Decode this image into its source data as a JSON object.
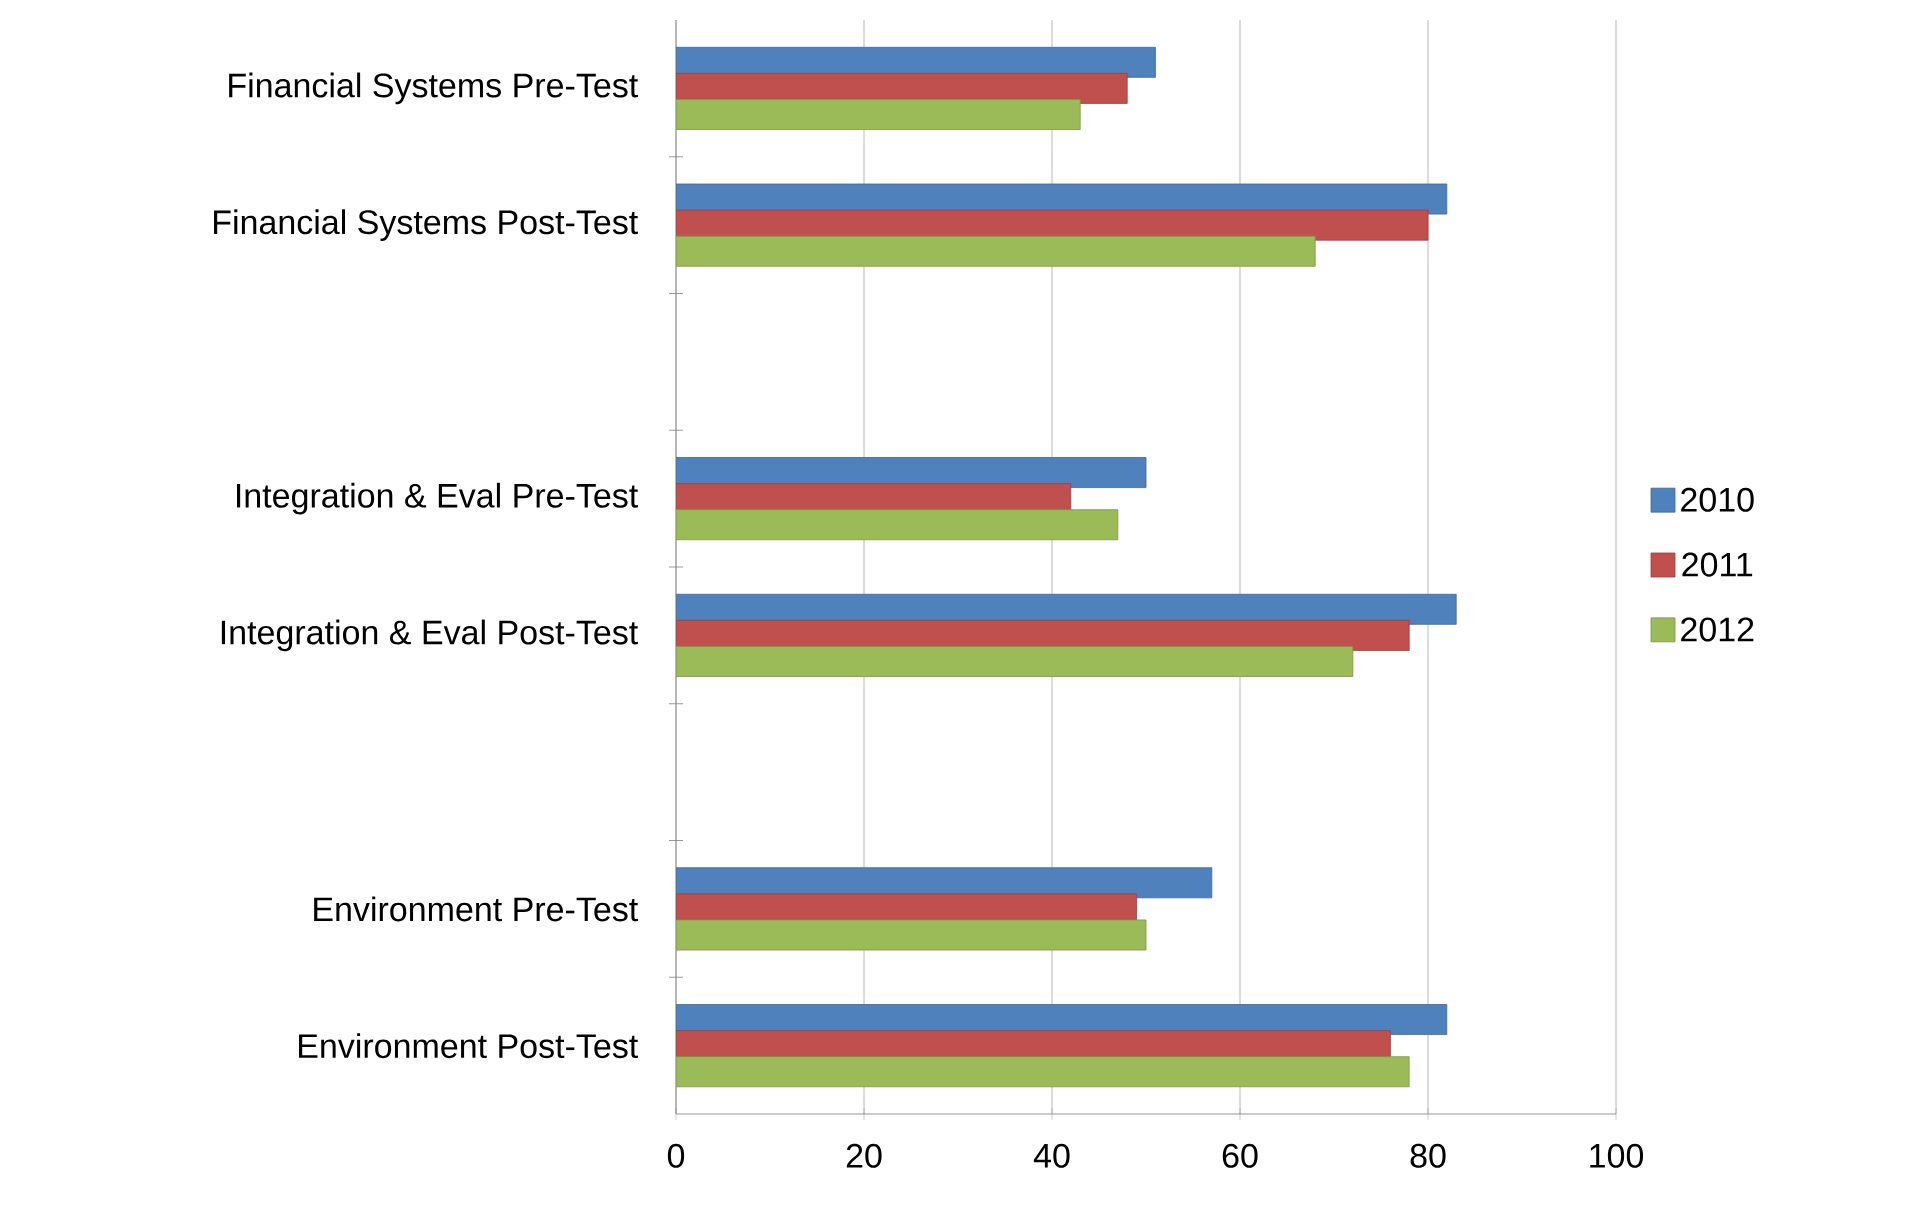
{
  "chart_data": {
    "type": "bar",
    "orientation": "horizontal",
    "categories": [
      "Financial Systems Pre-Test",
      "Financial Systems Post-Test",
      null,
      "Integration & Eval Pre-Test",
      "Integration & Eval Post-Test",
      null,
      "Environment Pre-Test",
      "Environment Post-Test"
    ],
    "series": [
      {
        "name": "2010",
        "color": "#4f81bd",
        "values": [
          51,
          82,
          null,
          50,
          83,
          null,
          57,
          82
        ]
      },
      {
        "name": "2011",
        "color": "#c0504d",
        "values": [
          48,
          80,
          null,
          42,
          78,
          null,
          49,
          76
        ]
      },
      {
        "name": "2012",
        "color": "#9bbb59",
        "values": [
          43,
          68,
          null,
          47,
          72,
          null,
          50,
          78
        ]
      }
    ],
    "xlim": [
      0,
      100
    ],
    "xticks": [
      0,
      20,
      40,
      60,
      80,
      100
    ],
    "grid": "x",
    "legend": "right"
  }
}
